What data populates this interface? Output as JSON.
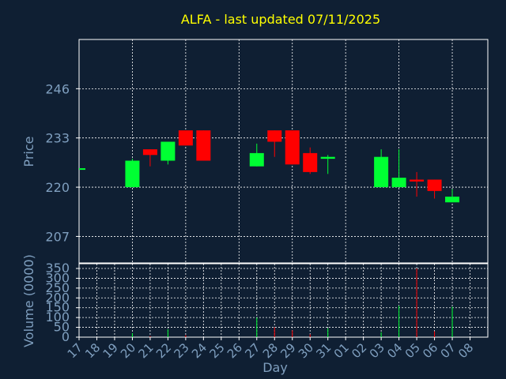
{
  "chart_data": {
    "type": "candlestick",
    "title": "ALFA - last updated 07/11/2025",
    "xlabel": "Day",
    "ylabel": "Price",
    "volume_ylabel": "Volume (0000)",
    "x_ticks": [
      "17",
      "18",
      "19",
      "20",
      "21",
      "22",
      "23",
      "24",
      "25",
      "26",
      "27",
      "28",
      "29",
      "30",
      "31",
      "01",
      "02",
      "03",
      "04",
      "05",
      "06",
      "07",
      "08"
    ],
    "price_ticks": [
      207,
      220,
      233,
      246
    ],
    "price_range": [
      200,
      259
    ],
    "volume_ticks": [
      0,
      50,
      100,
      150,
      200,
      250,
      300,
      350
    ],
    "volume_range": [
      0,
      350
    ],
    "grid": true,
    "colors": {
      "background": "#0f1f33",
      "up": "#00ff33",
      "down": "#ff0000",
      "grid": "#ffffff",
      "axis_text": "#7f9fbf",
      "title": "#ffff00"
    },
    "candles": [
      {
        "x": 0.1,
        "open": 225.0,
        "high": 225.0,
        "low": 225.0,
        "close": 225.0,
        "volume": 0
      },
      {
        "x": 3.0,
        "open": 220.0,
        "high": 227.5,
        "low": 220.0,
        "close": 227.0,
        "volume": 20
      },
      {
        "x": 4.0,
        "open": 230.0,
        "high": 230.0,
        "low": 225.5,
        "close": 228.5,
        "volume": 5
      },
      {
        "x": 5.0,
        "open": 227.0,
        "high": 232.0,
        "low": 226.0,
        "close": 232.0,
        "volume": 40
      },
      {
        "x": 6.0,
        "open": 235.0,
        "high": 235.0,
        "low": 231.0,
        "close": 231.0,
        "volume": 10
      },
      {
        "x": 7.0,
        "open": 235.0,
        "high": 235.0,
        "low": 227.0,
        "close": 227.0,
        "volume": 0
      },
      {
        "x": 10.0,
        "open": 225.5,
        "high": 231.5,
        "low": 225.5,
        "close": 229.0,
        "volume": 100
      },
      {
        "x": 11.0,
        "open": 235.0,
        "high": 235.0,
        "low": 228.0,
        "close": 232.0,
        "volume": 50
      },
      {
        "x": 12.0,
        "open": 235.0,
        "high": 235.0,
        "low": 226.0,
        "close": 226.0,
        "volume": 35
      },
      {
        "x": 13.0,
        "open": 229.0,
        "high": 230.5,
        "low": 223.5,
        "close": 224.0,
        "volume": 15
      },
      {
        "x": 14.0,
        "open": 227.5,
        "high": 228.5,
        "low": 223.5,
        "close": 228.0,
        "volume": 45
      },
      {
        "x": 17.0,
        "open": 220.0,
        "high": 230.0,
        "low": 220.0,
        "close": 228.0,
        "volume": 25
      },
      {
        "x": 18.0,
        "open": 220.0,
        "high": 230.0,
        "low": 220.0,
        "close": 222.5,
        "volume": 160
      },
      {
        "x": 19.0,
        "open": 222.0,
        "high": 224.0,
        "low": 217.5,
        "close": 221.5,
        "volume": 350
      },
      {
        "x": 20.0,
        "open": 222.0,
        "high": 222.0,
        "low": 217.0,
        "close": 219.0,
        "volume": 30
      },
      {
        "x": 21.0,
        "open": 216.0,
        "high": 219.5,
        "low": 216.0,
        "close": 217.5,
        "volume": 155
      }
    ]
  }
}
